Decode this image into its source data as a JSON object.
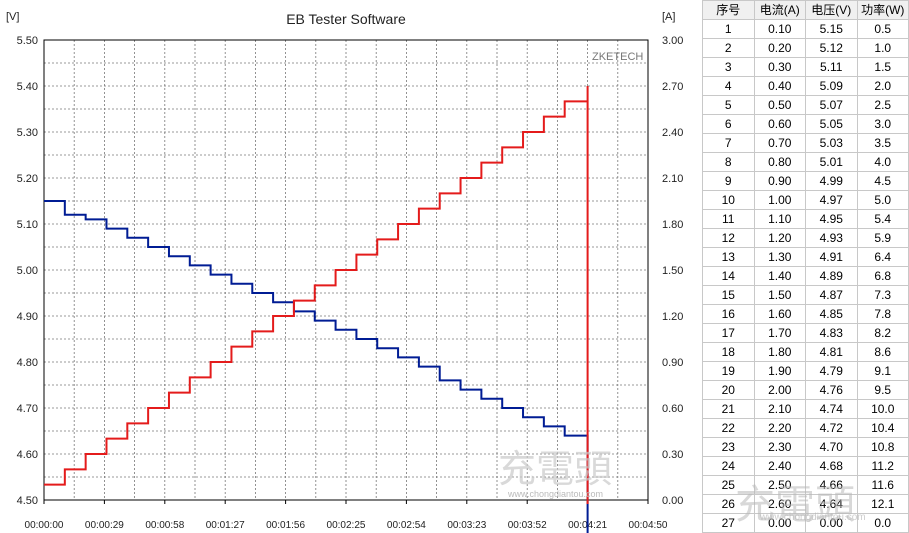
{
  "chart_data": {
    "type": "line",
    "title": "EB Tester Software",
    "brand": "ZKETECH",
    "left_unit": "[V]",
    "right_unit": "[A]",
    "left_axis": {
      "ylim": [
        4.5,
        5.5
      ],
      "ticks": [
        "5.50",
        "5.40",
        "5.30",
        "5.20",
        "5.10",
        "5.00",
        "4.90",
        "4.80",
        "4.70",
        "4.60",
        "4.50"
      ]
    },
    "right_axis": {
      "ylim": [
        0.0,
        3.0
      ],
      "ticks": [
        "3.00",
        "2.70",
        "2.40",
        "2.10",
        "1.80",
        "1.50",
        "1.20",
        "0.90",
        "0.60",
        "0.30",
        "0.00"
      ]
    },
    "x_axis": {
      "xlim_seconds": [
        0,
        290
      ],
      "ticks": [
        "00:00:00",
        "00:00:29",
        "00:00:58",
        "00:01:27",
        "00:01:56",
        "00:02:25",
        "00:02:54",
        "00:03:23",
        "00:03:52",
        "00:04:21",
        "00:04:50"
      ]
    },
    "grid": true,
    "series": [
      {
        "color": "#001c94",
        "axis": "left",
        "t": [
          0,
          10,
          20,
          30,
          40,
          50,
          60,
          70,
          80,
          90,
          100,
          110,
          120,
          130,
          140,
          150,
          160,
          170,
          180,
          190,
          200,
          210,
          220,
          230,
          240,
          250,
          256,
          261
        ],
        "y": [
          5.15,
          5.12,
          5.11,
          5.09,
          5.07,
          5.05,
          5.03,
          5.01,
          4.99,
          4.97,
          4.95,
          4.93,
          4.91,
          4.89,
          4.87,
          4.85,
          4.83,
          4.81,
          4.79,
          4.76,
          4.74,
          4.72,
          4.7,
          4.68,
          4.66,
          4.64,
          4.64,
          4.5
        ]
      },
      {
        "color": "#e41b1b",
        "axis": "right",
        "t": [
          0,
          10,
          20,
          30,
          40,
          50,
          60,
          70,
          80,
          90,
          100,
          110,
          120,
          130,
          140,
          150,
          160,
          170,
          180,
          190,
          200,
          210,
          220,
          230,
          240,
          250,
          256,
          261
        ],
        "y": [
          0.1,
          0.2,
          0.3,
          0.4,
          0.5,
          0.6,
          0.7,
          0.8,
          0.9,
          1.0,
          1.1,
          1.2,
          1.3,
          1.4,
          1.5,
          1.6,
          1.7,
          1.8,
          1.9,
          2.0,
          2.1,
          2.2,
          2.3,
          2.4,
          2.5,
          2.6,
          2.6,
          2.7
        ]
      }
    ]
  },
  "table": {
    "headers": [
      "序号",
      "电流(A)",
      "电压(V)",
      "功率(W)"
    ],
    "rows": [
      [
        "1",
        "0.10",
        "5.15",
        "0.5"
      ],
      [
        "2",
        "0.20",
        "5.12",
        "1.0"
      ],
      [
        "3",
        "0.30",
        "5.11",
        "1.5"
      ],
      [
        "4",
        "0.40",
        "5.09",
        "2.0"
      ],
      [
        "5",
        "0.50",
        "5.07",
        "2.5"
      ],
      [
        "6",
        "0.60",
        "5.05",
        "3.0"
      ],
      [
        "7",
        "0.70",
        "5.03",
        "3.5"
      ],
      [
        "8",
        "0.80",
        "5.01",
        "4.0"
      ],
      [
        "9",
        "0.90",
        "4.99",
        "4.5"
      ],
      [
        "10",
        "1.00",
        "4.97",
        "5.0"
      ],
      [
        "11",
        "1.10",
        "4.95",
        "5.4"
      ],
      [
        "12",
        "1.20",
        "4.93",
        "5.9"
      ],
      [
        "13",
        "1.30",
        "4.91",
        "6.4"
      ],
      [
        "14",
        "1.40",
        "4.89",
        "6.8"
      ],
      [
        "15",
        "1.50",
        "4.87",
        "7.3"
      ],
      [
        "16",
        "1.60",
        "4.85",
        "7.8"
      ],
      [
        "17",
        "1.70",
        "4.83",
        "8.2"
      ],
      [
        "18",
        "1.80",
        "4.81",
        "8.6"
      ],
      [
        "19",
        "1.90",
        "4.79",
        "9.1"
      ],
      [
        "20",
        "2.00",
        "4.76",
        "9.5"
      ],
      [
        "21",
        "2.10",
        "4.74",
        "10.0"
      ],
      [
        "22",
        "2.20",
        "4.72",
        "10.4"
      ],
      [
        "23",
        "2.30",
        "4.70",
        "10.8"
      ],
      [
        "24",
        "2.40",
        "4.68",
        "11.2"
      ],
      [
        "25",
        "2.50",
        "4.66",
        "11.6"
      ],
      [
        "26",
        "2.60",
        "4.64",
        "12.1"
      ],
      [
        "27",
        "0.00",
        "0.00",
        "0.0"
      ]
    ]
  },
  "watermark": {
    "logo": "充電頭",
    "url": "www.chongdiantou.com"
  }
}
